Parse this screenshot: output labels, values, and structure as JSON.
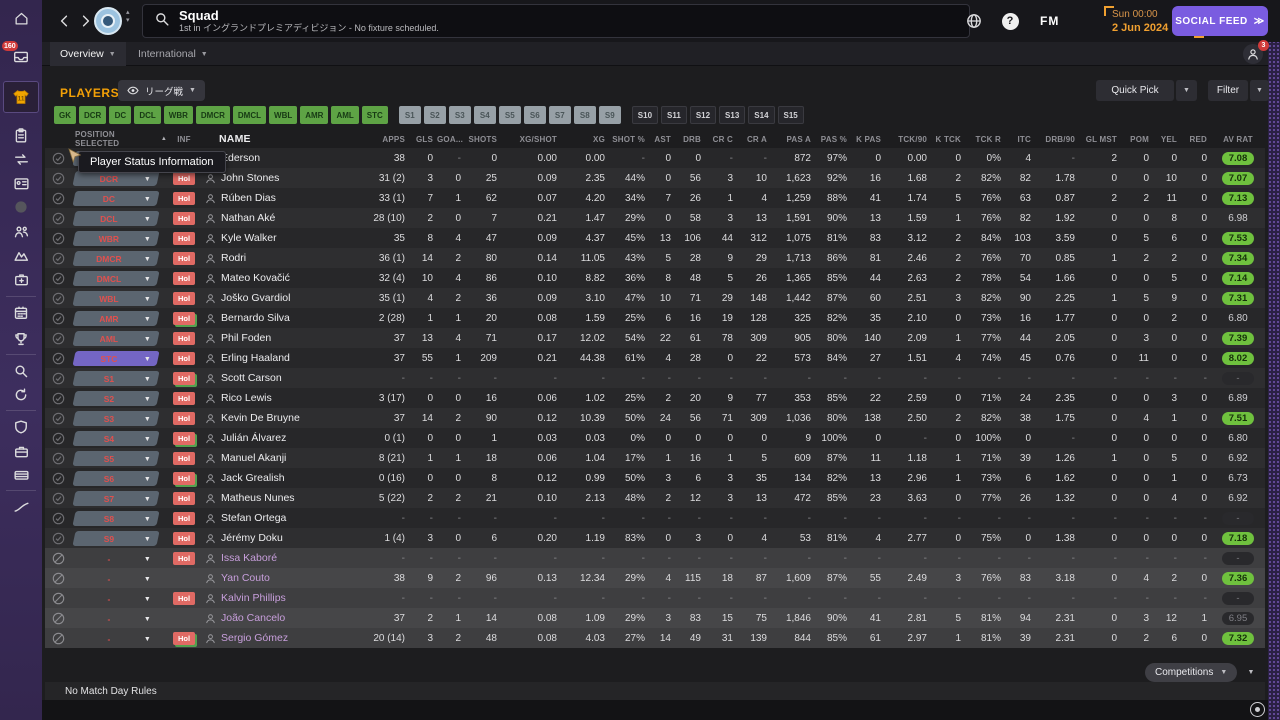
{
  "titlebar": {
    "title": "Squad",
    "subtitle": "1st in イングランドプレミアディビジョン - No fixture scheduled.",
    "fm_logo": "FM",
    "date_line1": "Sun 00:00",
    "date_line2": "2 Jun 2024",
    "social_feed_label": "SOCIAL FEED",
    "social_feed_arrows": "≫",
    "inbox_badge": "160",
    "notification_badge": "3"
  },
  "icons": {
    "back": "chevron-left",
    "forward": "chevron-right",
    "search": "magnifier",
    "world": "globe",
    "help": "question-circle",
    "view": "eye",
    "player_face": "person-silhouette",
    "selected": "check-circle",
    "not_selected": "slash-circle",
    "continue": "target-circle"
  },
  "tabs": [
    {
      "label": "Overview"
    },
    {
      "label": "International"
    }
  ],
  "players_bar": {
    "heading": "PLAYERS",
    "view_dropdown": "リーグ戦",
    "quick_pick_label": "Quick Pick",
    "filter_label": "Filter"
  },
  "position_filters": {
    "green": [
      "GK",
      "DCR",
      "DC",
      "DCL",
      "WBR",
      "DMCR",
      "DMCL",
      "WBL",
      "AMR",
      "AML",
      "STC"
    ],
    "gray": [
      "S1",
      "S2",
      "S3",
      "S4",
      "S5",
      "S6",
      "S7",
      "S8",
      "S9"
    ],
    "dark": [
      "S10",
      "S11",
      "S12",
      "S13",
      "S14",
      "S15"
    ]
  },
  "tooltip": "Player Status Information",
  "table": {
    "pos_header": "POSITION SELECTED",
    "inf_header": "INF",
    "name_header": "NAME",
    "stat_headers": [
      "APPS",
      "GLS",
      "GOA...",
      "SHOTS",
      "XG/SHOT",
      "XG",
      "SHOT %",
      "AST",
      "DRB",
      "CR C",
      "CR A",
      "PAS A",
      "PAS %",
      "K PAS",
      "TCK/90",
      "K TCK",
      "TCK R",
      "ITC",
      "DRB/90",
      "GL MST",
      "POM",
      "YEL",
      "RED"
    ],
    "rating_header": "AV RAT",
    "hol_label": "Hol"
  },
  "players": [
    {
      "pos": "GK",
      "pos_style": "slate",
      "hol": true,
      "hol_green": false,
      "name": "Ederson",
      "loan": false,
      "rating": "7.08",
      "rating_style": "green",
      "stats": [
        "38",
        "0",
        "-",
        "0",
        "0.00",
        "0.00",
        "-",
        "0",
        "0",
        "-",
        "-",
        "872",
        "97%",
        "0",
        "0.00",
        "0",
        "0%",
        "4",
        "-",
        "2",
        "0",
        "0",
        "0"
      ]
    },
    {
      "pos": "DCR",
      "pos_style": "slate",
      "hol": true,
      "hol_green": false,
      "name": "John Stones",
      "loan": false,
      "rating": "7.07",
      "rating_style": "green",
      "stats": [
        "31 (2)",
        "3",
        "0",
        "25",
        "0.09",
        "2.35",
        "44%",
        "0",
        "56",
        "3",
        "10",
        "1,623",
        "92%",
        "16",
        "1.68",
        "2",
        "82%",
        "82",
        "1.78",
        "0",
        "0",
        "10",
        "0"
      ]
    },
    {
      "pos": "DC",
      "pos_style": "slate",
      "hol": true,
      "hol_green": false,
      "name": "Rúben Dias",
      "loan": false,
      "rating": "7.13",
      "rating_style": "green",
      "stats": [
        "33 (1)",
        "7",
        "1",
        "62",
        "0.07",
        "4.20",
        "34%",
        "7",
        "26",
        "1",
        "4",
        "1,259",
        "88%",
        "41",
        "1.74",
        "5",
        "76%",
        "63",
        "0.87",
        "2",
        "2",
        "11",
        "0"
      ]
    },
    {
      "pos": "DCL",
      "pos_style": "slate",
      "hol": true,
      "hol_green": false,
      "name": "Nathan Aké",
      "loan": false,
      "rating": "6.98",
      "rating_style": "plain",
      "stats": [
        "28 (10)",
        "2",
        "0",
        "7",
        "0.21",
        "1.47",
        "29%",
        "0",
        "58",
        "3",
        "13",
        "1,591",
        "90%",
        "13",
        "1.59",
        "1",
        "76%",
        "82",
        "1.92",
        "0",
        "0",
        "8",
        "0"
      ]
    },
    {
      "pos": "WBR",
      "pos_style": "slate",
      "hol": true,
      "hol_green": false,
      "name": "Kyle Walker",
      "loan": false,
      "rating": "7.53",
      "rating_style": "green",
      "stats": [
        "35",
        "8",
        "4",
        "47",
        "0.09",
        "4.37",
        "45%",
        "13",
        "106",
        "44",
        "312",
        "1,075",
        "81%",
        "83",
        "3.12",
        "2",
        "84%",
        "103",
        "3.59",
        "0",
        "5",
        "6",
        "0"
      ]
    },
    {
      "pos": "DMCR",
      "pos_style": "slate",
      "hol": true,
      "hol_green": false,
      "name": "Rodri",
      "loan": false,
      "rating": "7.34",
      "rating_style": "green",
      "stats": [
        "36 (1)",
        "14",
        "2",
        "80",
        "0.14",
        "11.05",
        "43%",
        "5",
        "28",
        "9",
        "29",
        "1,713",
        "86%",
        "81",
        "2.46",
        "2",
        "76%",
        "70",
        "0.85",
        "1",
        "2",
        "2",
        "0"
      ]
    },
    {
      "pos": "DMCL",
      "pos_style": "slate",
      "hol": true,
      "hol_green": false,
      "name": "Mateo Kovačić",
      "loan": false,
      "rating": "7.14",
      "rating_style": "green",
      "stats": [
        "32 (4)",
        "10",
        "4",
        "86",
        "0.10",
        "8.82",
        "36%",
        "8",
        "48",
        "5",
        "26",
        "1,365",
        "85%",
        "44",
        "2.63",
        "2",
        "78%",
        "54",
        "1.66",
        "0",
        "0",
        "5",
        "0"
      ]
    },
    {
      "pos": "WBL",
      "pos_style": "slate",
      "hol": true,
      "hol_green": false,
      "name": "Joško Gvardiol",
      "loan": false,
      "rating": "7.31",
      "rating_style": "green",
      "stats": [
        "35 (1)",
        "4",
        "2",
        "36",
        "0.09",
        "3.10",
        "47%",
        "10",
        "71",
        "29",
        "148",
        "1,442",
        "87%",
        "60",
        "2.51",
        "3",
        "82%",
        "90",
        "2.25",
        "1",
        "5",
        "9",
        "0"
      ]
    },
    {
      "pos": "AMR",
      "pos_style": "slate",
      "hol": true,
      "hol_green": true,
      "name": "Bernardo Silva",
      "loan": false,
      "rating": "6.80",
      "rating_style": "plain",
      "stats": [
        "2 (28)",
        "1",
        "1",
        "20",
        "0.08",
        "1.59",
        "25%",
        "6",
        "16",
        "19",
        "128",
        "325",
        "82%",
        "35",
        "2.10",
        "0",
        "73%",
        "16",
        "1.77",
        "0",
        "0",
        "2",
        "0"
      ]
    },
    {
      "pos": "AML",
      "pos_style": "slate",
      "hol": true,
      "hol_green": false,
      "name": "Phil Foden",
      "loan": false,
      "rating": "7.39",
      "rating_style": "green",
      "stats": [
        "37",
        "13",
        "4",
        "71",
        "0.17",
        "12.02",
        "54%",
        "22",
        "61",
        "78",
        "309",
        "905",
        "80%",
        "140",
        "2.09",
        "1",
        "77%",
        "44",
        "2.05",
        "0",
        "3",
        "0",
        "0"
      ]
    },
    {
      "pos": "STC",
      "pos_style": "purple",
      "hol": true,
      "hol_green": false,
      "name": "Erling Haaland",
      "loan": false,
      "rating": "8.02",
      "rating_style": "green",
      "stats": [
        "37",
        "55",
        "1",
        "209",
        "0.21",
        "44.38",
        "61%",
        "4",
        "28",
        "0",
        "22",
        "573",
        "84%",
        "27",
        "1.51",
        "4",
        "74%",
        "45",
        "0.76",
        "0",
        "11",
        "0",
        "0"
      ]
    },
    {
      "pos": "S1",
      "pos_style": "slate",
      "hol": true,
      "hol_green": true,
      "name": "Scott Carson",
      "loan": false,
      "rating": "-",
      "rating_style": "dim",
      "stats": [
        "-",
        "-",
        "-",
        "-",
        "-",
        "-",
        "-",
        "-",
        "-",
        "-",
        "-",
        "-",
        "-",
        "-",
        "-",
        "-",
        "-",
        "-",
        "-",
        "-",
        "-",
        "-",
        "-"
      ]
    },
    {
      "pos": "S2",
      "pos_style": "slate",
      "hol": true,
      "hol_green": false,
      "name": "Rico Lewis",
      "loan": false,
      "rating": "6.89",
      "rating_style": "plain",
      "stats": [
        "3 (17)",
        "0",
        "0",
        "16",
        "0.06",
        "1.02",
        "25%",
        "2",
        "20",
        "9",
        "77",
        "353",
        "85%",
        "22",
        "2.59",
        "0",
        "71%",
        "24",
        "2.35",
        "0",
        "0",
        "3",
        "0"
      ]
    },
    {
      "pos": "S3",
      "pos_style": "slate",
      "hol": true,
      "hol_green": false,
      "name": "Kevin De Bruyne",
      "loan": false,
      "rating": "7.51",
      "rating_style": "green",
      "stats": [
        "37",
        "14",
        "2",
        "90",
        "0.12",
        "10.39",
        "50%",
        "24",
        "56",
        "71",
        "309",
        "1,036",
        "80%",
        "138",
        "2.50",
        "2",
        "82%",
        "38",
        "1.75",
        "0",
        "4",
        "1",
        "0"
      ]
    },
    {
      "pos": "S4",
      "pos_style": "slate",
      "hol": true,
      "hol_green": true,
      "name": "Julián Álvarez",
      "loan": false,
      "rating": "6.80",
      "rating_style": "plain",
      "stats": [
        "0 (1)",
        "0",
        "0",
        "1",
        "0.03",
        "0.03",
        "0%",
        "0",
        "0",
        "0",
        "0",
        "9",
        "100%",
        "0",
        "-",
        "0",
        "100%",
        "0",
        "-",
        "0",
        "0",
        "0",
        "0"
      ]
    },
    {
      "pos": "S5",
      "pos_style": "slate",
      "hol": true,
      "hol_green": false,
      "name": "Manuel Akanji",
      "loan": false,
      "rating": "6.92",
      "rating_style": "plain",
      "stats": [
        "8 (21)",
        "1",
        "1",
        "18",
        "0.06",
        "1.04",
        "17%",
        "1",
        "16",
        "1",
        "5",
        "609",
        "87%",
        "11",
        "1.18",
        "1",
        "71%",
        "39",
        "1.26",
        "1",
        "0",
        "5",
        "0"
      ]
    },
    {
      "pos": "S6",
      "pos_style": "slate",
      "hol": true,
      "hol_green": true,
      "name": "Jack Grealish",
      "loan": false,
      "rating": "6.73",
      "rating_style": "plain",
      "stats": [
        "0 (16)",
        "0",
        "0",
        "8",
        "0.12",
        "0.99",
        "50%",
        "3",
        "6",
        "3",
        "35",
        "134",
        "82%",
        "13",
        "2.96",
        "1",
        "73%",
        "6",
        "1.62",
        "0",
        "0",
        "1",
        "0"
      ]
    },
    {
      "pos": "S7",
      "pos_style": "slate",
      "hol": true,
      "hol_green": false,
      "name": "Matheus Nunes",
      "loan": false,
      "rating": "6.92",
      "rating_style": "plain",
      "stats": [
        "5 (22)",
        "2",
        "2",
        "21",
        "0.10",
        "2.13",
        "48%",
        "2",
        "12",
        "3",
        "13",
        "472",
        "85%",
        "23",
        "3.63",
        "0",
        "77%",
        "26",
        "1.32",
        "0",
        "0",
        "4",
        "0"
      ]
    },
    {
      "pos": "S8",
      "pos_style": "slate",
      "hol": true,
      "hol_green": false,
      "name": "Stefan Ortega",
      "loan": false,
      "rating": "-",
      "rating_style": "dim",
      "stats": [
        "-",
        "-",
        "-",
        "-",
        "-",
        "-",
        "-",
        "-",
        "-",
        "-",
        "-",
        "-",
        "-",
        "-",
        "-",
        "-",
        "-",
        "-",
        "-",
        "-",
        "-",
        "-",
        "-"
      ]
    },
    {
      "pos": "S9",
      "pos_style": "slate",
      "hol": true,
      "hol_green": false,
      "name": "Jérémy Doku",
      "loan": false,
      "rating": "7.18",
      "rating_style": "green",
      "stats": [
        "1 (4)",
        "3",
        "0",
        "6",
        "0.20",
        "1.19",
        "83%",
        "0",
        "3",
        "0",
        "4",
        "53",
        "81%",
        "4",
        "2.77",
        "0",
        "75%",
        "0",
        "1.38",
        "0",
        "0",
        "0",
        "0"
      ]
    },
    {
      "pos": "-",
      "pos_style": "none",
      "hol": true,
      "hol_green": false,
      "name": "Issa Kaboré",
      "loan": true,
      "rating": "-",
      "rating_style": "dim",
      "stats": [
        "-",
        "-",
        "-",
        "-",
        "-",
        "-",
        "-",
        "-",
        "-",
        "-",
        "-",
        "-",
        "-",
        "-",
        "-",
        "-",
        "-",
        "-",
        "-",
        "-",
        "-",
        "-",
        "-"
      ]
    },
    {
      "pos": "-",
      "pos_style": "none",
      "hol": false,
      "hol_green": false,
      "name": "Yan Couto",
      "loan": true,
      "rating": "7.36",
      "rating_style": "green",
      "stats": [
        "38",
        "9",
        "2",
        "96",
        "0.13",
        "12.34",
        "29%",
        "4",
        "115",
        "18",
        "87",
        "1,609",
        "87%",
        "55",
        "2.49",
        "3",
        "76%",
        "83",
        "3.18",
        "0",
        "4",
        "2",
        "0"
      ]
    },
    {
      "pos": "-",
      "pos_style": "none",
      "hol": true,
      "hol_green": false,
      "name": "Kalvin Phillips",
      "loan": true,
      "rating": "-",
      "rating_style": "dim",
      "stats": [
        "-",
        "-",
        "-",
        "-",
        "-",
        "-",
        "-",
        "-",
        "-",
        "-",
        "-",
        "-",
        "-",
        "-",
        "-",
        "-",
        "-",
        "-",
        "-",
        "-",
        "-",
        "-",
        "-"
      ]
    },
    {
      "pos": "-",
      "pos_style": "none",
      "hol": false,
      "hol_green": false,
      "name": "João Cancelo",
      "loan": true,
      "rating": "6.95",
      "rating_style": "dim",
      "stats": [
        "37",
        "2",
        "1",
        "14",
        "0.08",
        "1.09",
        "29%",
        "3",
        "83",
        "15",
        "75",
        "1,846",
        "90%",
        "41",
        "2.81",
        "5",
        "81%",
        "94",
        "2.31",
        "0",
        "3",
        "12",
        "1"
      ]
    },
    {
      "pos": "-",
      "pos_style": "none",
      "hol": true,
      "hol_green": true,
      "name": "Sergio Gómez",
      "loan": true,
      "rating": "7.32",
      "rating_style": "green",
      "stats": [
        "20 (14)",
        "3",
        "2",
        "48",
        "0.08",
        "4.03",
        "27%",
        "14",
        "49",
        "31",
        "139",
        "844",
        "85%",
        "61",
        "2.97",
        "1",
        "81%",
        "39",
        "2.31",
        "0",
        "2",
        "6",
        "0"
      ]
    }
  ],
  "footer": {
    "note": "No Match Day Rules",
    "competitions_label": "Competitions"
  },
  "colors": {
    "accent_orange": "#f2a007",
    "position_green": "#5ea345",
    "badge_slate": "#5b6570",
    "badge_purple": "#7466c4",
    "hol_red": "#e06a64",
    "rating_green": "#6fc13e",
    "loan_name_purple": "#c89fdc",
    "social_purple": "#7a5ce0"
  }
}
